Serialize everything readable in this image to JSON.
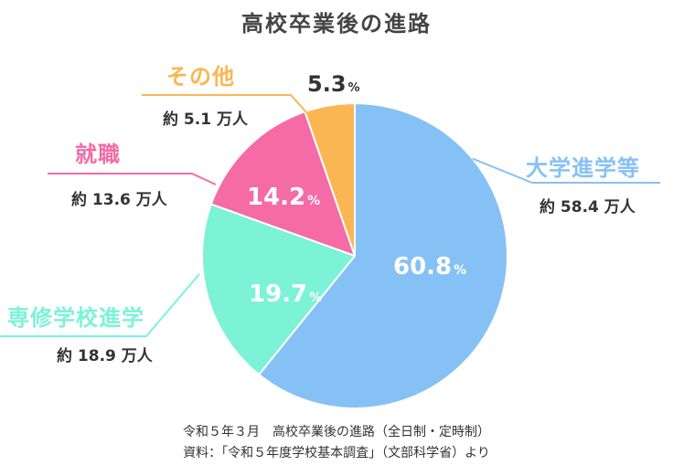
{
  "title": "高校卒業後の進路",
  "chart_data": {
    "type": "pie",
    "title": "高校卒業後の進路",
    "unit": "%",
    "slices": [
      {
        "label": "大学進学等",
        "value": 60.8,
        "count": "約 58.4 万人",
        "color": "#86C1F5"
      },
      {
        "label": "専修学校進学",
        "value": 19.7,
        "count": "約 18.9 万人",
        "color": "#7CF2D7"
      },
      {
        "label": "就職",
        "value": 14.2,
        "count": "約 13.6 万人",
        "color": "#F46BA6"
      },
      {
        "label": "その他",
        "value": 5.3,
        "count": "約 5.1 万人",
        "color": "#FBB654"
      }
    ]
  },
  "captions": {
    "line1": "令和５年３月　高校卒業後の進路（全日制・定時制）",
    "line2": "資料：「令和５年度学校基本調査」（文部科学省）より"
  }
}
